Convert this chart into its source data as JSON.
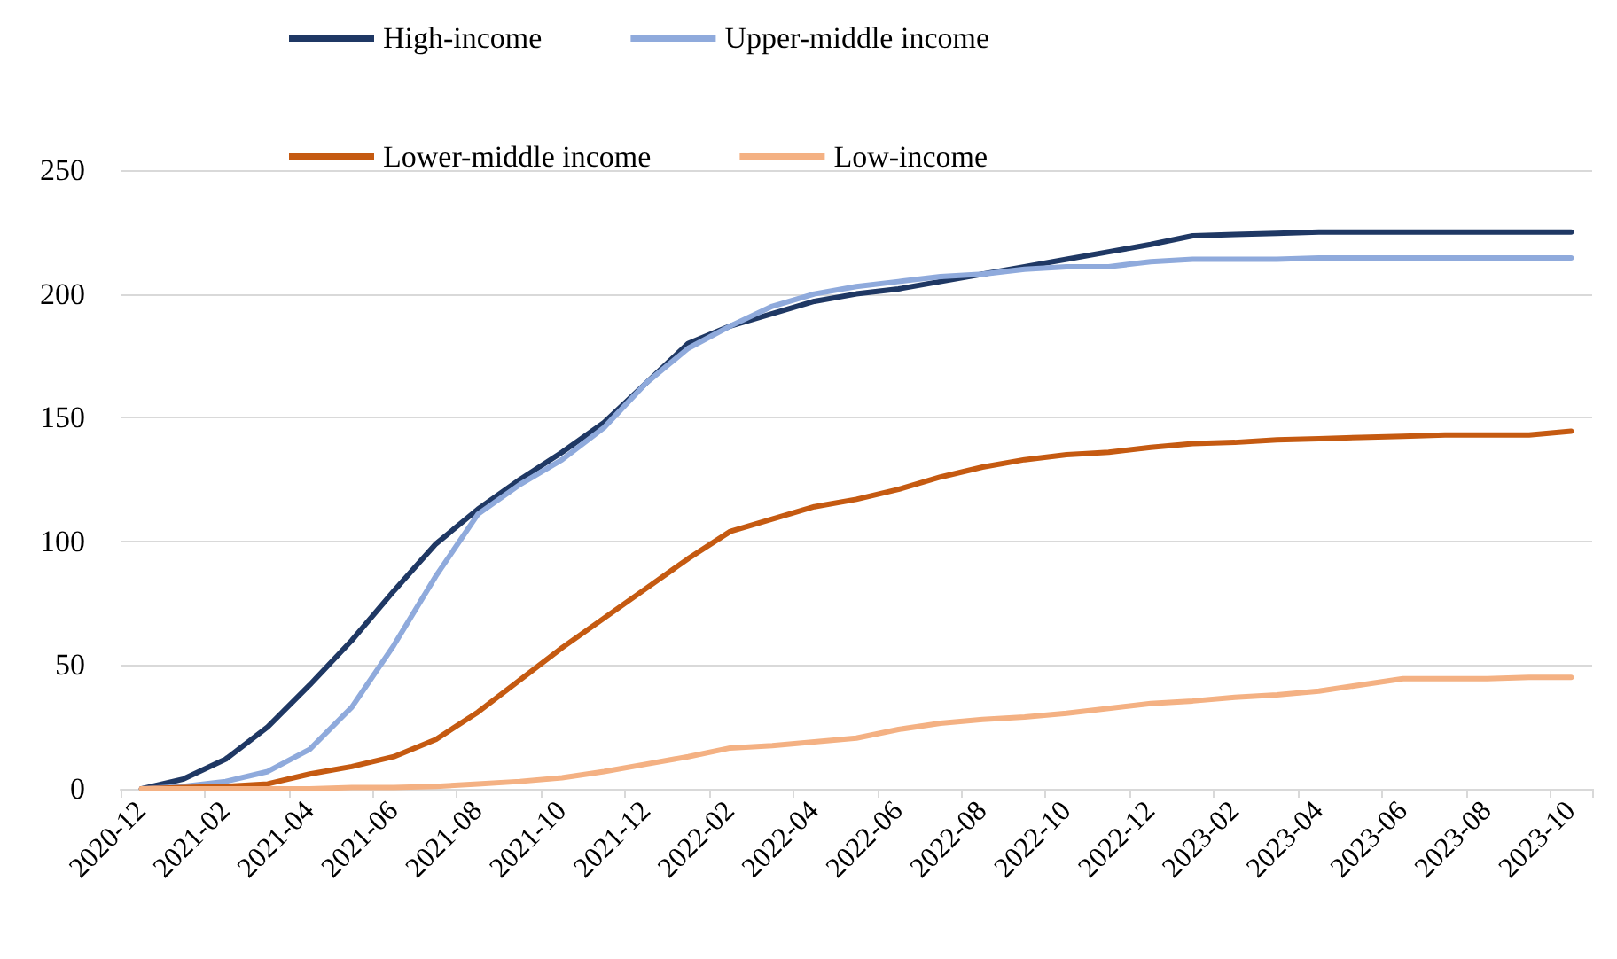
{
  "chart_data": {
    "type": "line",
    "categories": [
      "2020-12",
      null,
      "2021-02",
      null,
      "2021-04",
      null,
      "2021-06",
      null,
      "2021-08",
      null,
      "2021-10",
      null,
      "2021-12",
      null,
      "2022-02",
      null,
      "2022-04",
      null,
      "2022-06",
      null,
      "2022-08",
      null,
      "2022-10",
      null,
      "2022-12",
      null,
      "2023-02",
      null,
      "2023-04",
      null,
      "2023-06",
      null,
      "2023-08",
      null,
      "2023-10"
    ],
    "series": [
      {
        "name": "High-income",
        "color": "#1f3864",
        "values": [
          0,
          4,
          12,
          25,
          42,
          60,
          80,
          99,
          113,
          125,
          136,
          148,
          164,
          180,
          187,
          192,
          197,
          200,
          202,
          205,
          208,
          211,
          214,
          217,
          220,
          223.5,
          224,
          224.5,
          225,
          225,
          225,
          225,
          225,
          225,
          225
        ]
      },
      {
        "name": "Upper-middle income",
        "color": "#8faadc",
        "values": [
          0,
          1,
          3,
          7,
          16,
          33,
          58,
          86,
          111,
          123,
          133,
          146,
          164,
          178,
          187,
          195,
          200,
          203,
          205,
          207,
          208,
          210,
          211,
          211,
          213,
          214,
          214,
          214,
          214.5,
          214.5,
          214.5,
          214.5,
          214.5,
          214.5,
          214.5
        ]
      },
      {
        "name": "Lower-middle income",
        "color": "#c55a11",
        "values": [
          0,
          0.5,
          1,
          2,
          6,
          9,
          13,
          20,
          31,
          44,
          57,
          69,
          81,
          93,
          104,
          109,
          114,
          117,
          121,
          126,
          130,
          133,
          135,
          136,
          138,
          139.5,
          140,
          141,
          141.5,
          142,
          142.5,
          143,
          143,
          143,
          144.5
        ]
      },
      {
        "name": "Low-income",
        "color": "#f4b183",
        "values": [
          0,
          0,
          0,
          0,
          0,
          0.5,
          0.5,
          1,
          2,
          3,
          4.5,
          7,
          10,
          13,
          16.5,
          17.5,
          19,
          20.5,
          24,
          26.5,
          28,
          29,
          30.5,
          32.5,
          34.5,
          35.5,
          37,
          38,
          39.5,
          42,
          44.5,
          44.5,
          44.5,
          45,
          45
        ]
      }
    ],
    "ylim": [
      0,
      250
    ],
    "yticks": [
      0,
      50,
      100,
      150,
      200,
      250
    ],
    "grid": "y",
    "legend": "top",
    "marker": "none",
    "line_style": "solid"
  }
}
